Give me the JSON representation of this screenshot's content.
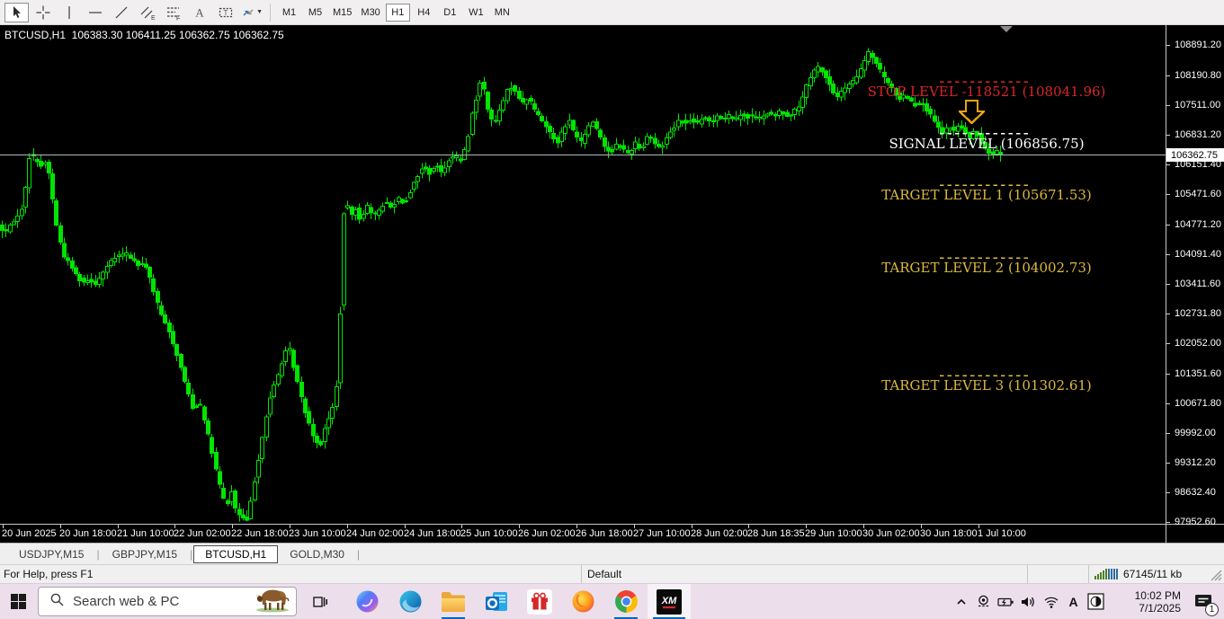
{
  "toolbar": {
    "tools": [
      {
        "name": "cursor",
        "active": true
      },
      {
        "name": "crosshair",
        "active": false
      },
      {
        "name": "vertical-line",
        "active": false
      },
      {
        "name": "horizontal-line",
        "active": false
      },
      {
        "name": "trendline",
        "active": false
      },
      {
        "name": "equidistant-channel",
        "active": false
      },
      {
        "name": "fibonacci-retracement",
        "active": false
      },
      {
        "name": "text",
        "active": false
      },
      {
        "name": "text-label",
        "active": false
      },
      {
        "name": "arrow-shapes",
        "active": false,
        "has_dropdown": true
      }
    ],
    "timeframes": [
      {
        "label": "M1",
        "active": false
      },
      {
        "label": "M5",
        "active": false
      },
      {
        "label": "M15",
        "active": false
      },
      {
        "label": "M30",
        "active": false
      },
      {
        "label": "H1",
        "active": true
      },
      {
        "label": "H4",
        "active": false
      },
      {
        "label": "D1",
        "active": false
      },
      {
        "label": "W1",
        "active": false
      },
      {
        "label": "MN",
        "active": false
      }
    ]
  },
  "chart": {
    "header": "BTCUSD,H1  106383.30 106411.25 106362.75 106362.75",
    "current_price": "106362.75"
  },
  "chart_data": {
    "type": "candlestick",
    "symbol": "BTCUSD",
    "timeframe": "H1",
    "quote": {
      "open": "106383.30",
      "high": "106411.25",
      "low": "106362.75",
      "close": "106362.75"
    },
    "current_price": 106362.75,
    "up_color": "#00e400",
    "down_color": "#00e400",
    "y_axis": {
      "min": 97952.6,
      "max": 108891.2,
      "labels": [
        "108891.20",
        "108190.80",
        "107511.00",
        "106831.20",
        "106151.40",
        "105471.60",
        "104771.20",
        "104091.40",
        "103411.60",
        "102731.80",
        "102052.00",
        "101351.60",
        "100671.80",
        "99992.00",
        "99312.20",
        "98632.40",
        "97952.60"
      ]
    },
    "x_axis": {
      "labels": [
        "20 Jun 2025",
        "20 Jun 18:00",
        "21 Jun 10:00",
        "22 Jun 02:00",
        "22 Jun 18:00",
        "23 Jun 10:00",
        "24 Jun 02:00",
        "24 Jun 18:00",
        "25 Jun 10:00",
        "26 Jun 02:00",
        "26 Jun 18:00",
        "27 Jun 10:00",
        "28 Jun 02:00",
        "28 Jun 18:35",
        "29 Jun 10:00",
        "30 Jun 02:00",
        "30 Jun 18:00",
        "1 Jul 10:00"
      ]
    },
    "levels": [
      {
        "name": "stop-level",
        "label": "STOP LEVEL -118521 (108041.96)",
        "price": 108041.96,
        "color": "#d92626"
      },
      {
        "name": "signal-level",
        "label": "SIGNAL LEVEL (106856.75)",
        "price": 106856.75,
        "color": "#ffffff"
      },
      {
        "name": "target-level-1",
        "label": "TARGET LEVEL 1 (105671.53)",
        "price": 105671.53,
        "color": "#ddb93d"
      },
      {
        "name": "target-level-2",
        "label": "TARGET LEVEL 2 (104002.73)",
        "price": 104002.73,
        "color": "#ddb93d"
      },
      {
        "name": "target-level-3",
        "label": "TARGET LEVEL 3 (101302.61)",
        "price": 101302.61,
        "color": "#ddb93d"
      }
    ],
    "signal_arrow": {
      "direction": "down",
      "color": "#e8a412"
    },
    "price_path": [
      [
        0,
        104750
      ],
      [
        6,
        104600
      ],
      [
        12,
        104700
      ],
      [
        18,
        104900
      ],
      [
        24,
        105000
      ],
      [
        30,
        105600
      ],
      [
        34,
        106300
      ],
      [
        37,
        106550
      ],
      [
        40,
        106150
      ],
      [
        44,
        106250
      ],
      [
        48,
        106100
      ],
      [
        52,
        106200
      ],
      [
        56,
        105950
      ],
      [
        60,
        105400
      ],
      [
        64,
        104800
      ],
      [
        69,
        104350
      ],
      [
        74,
        104000
      ],
      [
        80,
        103850
      ],
      [
        87,
        103600
      ],
      [
        94,
        103450
      ],
      [
        101,
        103520
      ],
      [
        108,
        103420
      ],
      [
        115,
        103650
      ],
      [
        122,
        103850
      ],
      [
        129,
        104000
      ],
      [
        136,
        104080
      ],
      [
        143,
        104100
      ],
      [
        150,
        103950
      ],
      [
        157,
        103820
      ],
      [
        163,
        103880
      ],
      [
        169,
        103500
      ],
      [
        176,
        103000
      ],
      [
        183,
        102600
      ],
      [
        190,
        102300
      ],
      [
        197,
        101900
      ],
      [
        204,
        101400
      ],
      [
        211,
        100900
      ],
      [
        217,
        100500
      ],
      [
        223,
        100750
      ],
      [
        229,
        100300
      ],
      [
        235,
        99750
      ],
      [
        241,
        99200
      ],
      [
        247,
        98700
      ],
      [
        253,
        98300
      ],
      [
        259,
        98650
      ],
      [
        264,
        98200
      ],
      [
        270,
        98050
      ],
      [
        277,
        97990
      ],
      [
        283,
        98700
      ],
      [
        290,
        99500
      ],
      [
        297,
        100300
      ],
      [
        304,
        100950
      ],
      [
        311,
        101350
      ],
      [
        318,
        101800
      ],
      [
        323,
        101950
      ],
      [
        329,
        101450
      ],
      [
        336,
        100850
      ],
      [
        343,
        100350
      ],
      [
        350,
        99950
      ],
      [
        357,
        99650
      ],
      [
        363,
        100150
      ],
      [
        369,
        100400
      ],
      [
        375,
        100850
      ],
      [
        380,
        102800
      ],
      [
        385,
        105450
      ],
      [
        391,
        104950
      ],
      [
        397,
        105150
      ],
      [
        403,
        104850
      ],
      [
        409,
        105250
      ],
      [
        416,
        104950
      ],
      [
        423,
        105100
      ],
      [
        430,
        105300
      ],
      [
        437,
        105150
      ],
      [
        444,
        105400
      ],
      [
        451,
        105250
      ],
      [
        458,
        105550
      ],
      [
        465,
        105850
      ],
      [
        472,
        106100
      ],
      [
        479,
        105950
      ],
      [
        486,
        106150
      ],
      [
        493,
        105950
      ],
      [
        500,
        106250
      ],
      [
        507,
        106350
      ],
      [
        514,
        106250
      ],
      [
        520,
        106550
      ],
      [
        526,
        107250
      ],
      [
        531,
        107650
      ],
      [
        536,
        108050
      ],
      [
        540,
        107850
      ],
      [
        545,
        107350
      ],
      [
        550,
        107050
      ],
      [
        555,
        107250
      ],
      [
        560,
        107550
      ],
      [
        566,
        107850
      ],
      [
        571,
        107950
      ],
      [
        577,
        107750
      ],
      [
        583,
        107550
      ],
      [
        589,
        107700
      ],
      [
        595,
        107450
      ],
      [
        601,
        107250
      ],
      [
        608,
        107050
      ],
      [
        615,
        106850
      ],
      [
        621,
        106650
      ],
      [
        628,
        106950
      ],
      [
        635,
        107150
      ],
      [
        641,
        106850
      ],
      [
        648,
        106650
      ],
      [
        654,
        106950
      ],
      [
        661,
        107150
      ],
      [
        668,
        106850
      ],
      [
        674,
        106550
      ],
      [
        681,
        106420
      ],
      [
        688,
        106650
      ],
      [
        695,
        106480
      ],
      [
        701,
        106400
      ],
      [
        708,
        106650
      ],
      [
        715,
        106500
      ],
      [
        722,
        106850
      ],
      [
        729,
        106650
      ],
      [
        736,
        106500
      ],
      [
        743,
        106780
      ],
      [
        750,
        106980
      ],
      [
        757,
        107180
      ],
      [
        764,
        107080
      ],
      [
        771,
        107180
      ],
      [
        778,
        107080
      ],
      [
        785,
        107230
      ],
      [
        792,
        107130
      ],
      [
        799,
        107280
      ],
      [
        806,
        107180
      ],
      [
        813,
        107280
      ],
      [
        820,
        107180
      ],
      [
        827,
        107330
      ],
      [
        834,
        107230
      ],
      [
        841,
        107280
      ],
      [
        848,
        107180
      ],
      [
        855,
        107330
      ],
      [
        862,
        107230
      ],
      [
        869,
        107380
      ],
      [
        876,
        107280
      ],
      [
        883,
        107330
      ],
      [
        890,
        107480
      ],
      [
        897,
        107880
      ],
      [
        904,
        108180
      ],
      [
        910,
        108400
      ],
      [
        916,
        108280
      ],
      [
        922,
        108080
      ],
      [
        928,
        107800
      ],
      [
        934,
        107700
      ],
      [
        940,
        107880
      ],
      [
        946,
        107980
      ],
      [
        952,
        108080
      ],
      [
        958,
        108280
      ],
      [
        963,
        108530
      ],
      [
        968,
        108720
      ],
      [
        973,
        108580
      ],
      [
        978,
        108380
      ],
      [
        984,
        108180
      ],
      [
        990,
        107980
      ],
      [
        996,
        107800
      ],
      [
        1002,
        107660
      ],
      [
        1008,
        107760
      ],
      [
        1014,
        107610
      ],
      [
        1020,
        107510
      ],
      [
        1026,
        107610
      ],
      [
        1032,
        107410
      ],
      [
        1038,
        107210
      ],
      [
        1044,
        107010
      ],
      [
        1050,
        106860
      ],
      [
        1056,
        107010
      ],
      [
        1062,
        106910
      ],
      [
        1068,
        107060
      ],
      [
        1074,
        106910
      ],
      [
        1080,
        106760
      ],
      [
        1086,
        106910
      ],
      [
        1092,
        106710
      ],
      [
        1098,
        106510
      ],
      [
        1104,
        106390
      ],
      [
        1110,
        106470
      ],
      [
        1114,
        106363
      ]
    ]
  },
  "tabs": {
    "items": [
      {
        "label": "USDJPY,M15",
        "active": false
      },
      {
        "label": "GBPJPY,M15",
        "active": false
      },
      {
        "label": "BTCUSD,H1",
        "active": true
      },
      {
        "label": "GOLD,M30",
        "active": false
      }
    ]
  },
  "statusbar": {
    "help": "For Help, press F1",
    "profile": "Default",
    "data_rate": "67145/11 kb"
  },
  "taskbar": {
    "search_placeholder": "Search web & PC",
    "apps": [
      {
        "name": "copilot",
        "running": false,
        "active": false
      },
      {
        "name": "edge",
        "running": false,
        "active": false
      },
      {
        "name": "file-explorer",
        "running": true,
        "active": false
      },
      {
        "name": "outlook",
        "running": false,
        "active": false
      },
      {
        "name": "gift",
        "running": false,
        "active": false
      },
      {
        "name": "firefox",
        "running": false,
        "active": false
      },
      {
        "name": "chrome",
        "running": true,
        "active": false
      },
      {
        "name": "xm-trading",
        "running": true,
        "active": true
      }
    ],
    "tray": [
      "chevron-up",
      "meet-camera",
      "battery",
      "volume",
      "wifi",
      "language-a",
      "theme-toggle"
    ],
    "clock": {
      "time": "10:02 PM",
      "date": "7/1/2025"
    },
    "notification_count": "1"
  }
}
